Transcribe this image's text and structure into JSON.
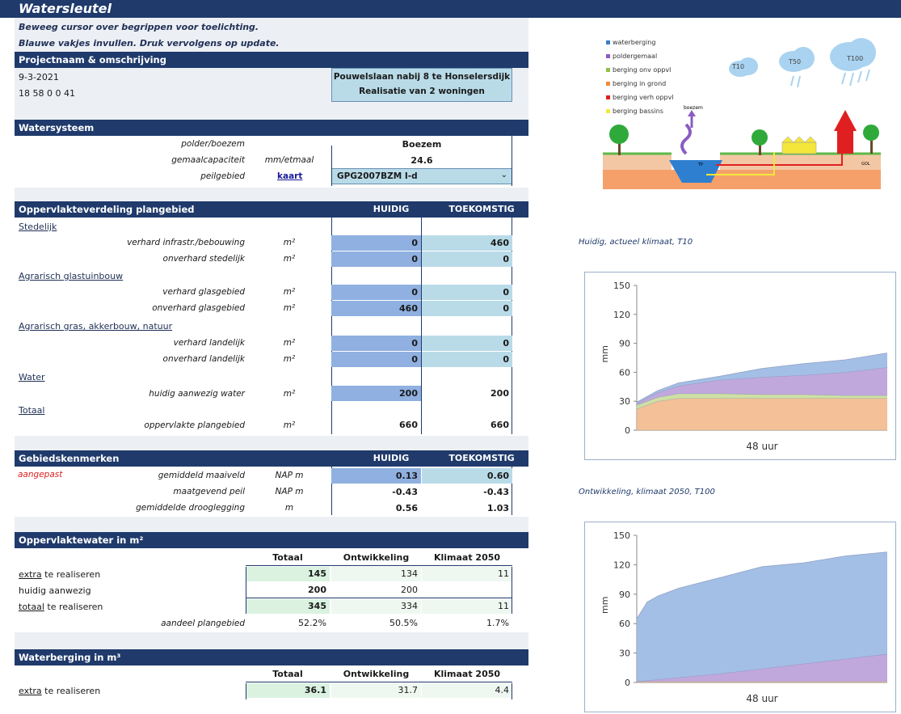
{
  "app": {
    "title": "Watersleutel",
    "instructions": [
      "Beweeg cursor over begrippen voor toelichting.",
      "Blauwe vakjes invullen. Druk vervolgens op update."
    ]
  },
  "project": {
    "header": "Projectnaam & omschrijving",
    "date": "9-3-2021",
    "code": "18 58 0 0 41",
    "name": "Pouwelslaan nabij 8 te Honselersdijk",
    "description": "Realisatie van 2 woningen"
  },
  "watersysteem": {
    "header": "Watersysteem",
    "rows": [
      {
        "label": "polder/boezem",
        "unit": "",
        "value": "Boezem"
      },
      {
        "label": "gemaalcapaciteit",
        "unit": "mm/etmaal",
        "value": "24.6"
      },
      {
        "label": "peilgebied",
        "unit": "kaart",
        "value": "GPG2007BZM I-d"
      }
    ]
  },
  "opp": {
    "header": "Oppervlakteverdeling plangebied",
    "col1": "HUIDIG",
    "col2": "TOEKOMSTIG",
    "sections": [
      "Stedelijk",
      "Agrarisch glastuinbouw",
      "Agrarisch gras, akkerbouw, natuur",
      "Water",
      "Totaal"
    ],
    "rows": [
      {
        "label": "verhard infrastr./bebouwing",
        "unit": "m²",
        "h": "0",
        "t": "460"
      },
      {
        "label": "onverhard stedelijk",
        "unit": "m²",
        "h": "0",
        "t": "0"
      },
      {
        "label": "verhard glasgebied",
        "unit": "m²",
        "h": "0",
        "t": "0"
      },
      {
        "label": "onverhard glasgebied",
        "unit": "m²",
        "h": "460",
        "t": "0"
      },
      {
        "label": "verhard landelijk",
        "unit": "m²",
        "h": "0",
        "t": "0"
      },
      {
        "label": "onverhard landelijk",
        "unit": "m²",
        "h": "0",
        "t": "0"
      },
      {
        "label": "huidig aanwezig water",
        "unit": "m²",
        "h": "200",
        "t": "200"
      },
      {
        "label": "oppervlakte plangebied",
        "unit": "m²",
        "h": "660",
        "t": "660"
      }
    ]
  },
  "gebied": {
    "header": "Gebiedskenmerken",
    "col1": "HUIDIG",
    "col2": "TOEKOMSTIG",
    "flag": "aangepast",
    "rows": [
      {
        "label": "gemiddeld maaiveld",
        "unit": "NAP m",
        "h": "0.13",
        "t": "0.60"
      },
      {
        "label": "maatgevend peil",
        "unit": "NAP m",
        "h": "-0.43",
        "t": "-0.43"
      },
      {
        "label": "gemiddelde drooglegging",
        "unit": "m",
        "h": "0.56",
        "t": "1.03"
      }
    ]
  },
  "opwater": {
    "header": "Oppervlaktewater in m²",
    "cols": [
      "Totaal",
      "Ontwikkeling",
      "Klimaat 2050"
    ],
    "rows": [
      {
        "a": "extra",
        "b": " te realiseren",
        "v": [
          "145",
          "134",
          "11"
        ]
      },
      {
        "a": "",
        "b": "huidig aanwezig",
        "v": [
          "200",
          "200",
          ""
        ]
      },
      {
        "a": "totaal",
        "b": " te realiseren",
        "v": [
          "345",
          "334",
          "11"
        ]
      }
    ],
    "share_label": "aandeel plangebied",
    "share": [
      "52.2%",
      "50.5%",
      "1.7%"
    ]
  },
  "waterberging": {
    "header": "Waterberging in m³",
    "cols": [
      "Totaal",
      "Ontwikkeling",
      "Klimaat 2050"
    ],
    "row": {
      "a": "extra",
      "b": " te realiseren",
      "v": [
        "36.1",
        "31.7",
        "4.4"
      ]
    }
  },
  "diagram": {
    "legend": [
      {
        "label": "waterberging",
        "color": "#3d7cc9"
      },
      {
        "label": "poldergemaal",
        "color": "#8a5cc2"
      },
      {
        "label": "berging onv oppvl",
        "color": "#8fc04a"
      },
      {
        "label": "berging in grond",
        "color": "#f08a3c"
      },
      {
        "label": "berging verh oppvl",
        "color": "#e02020"
      },
      {
        "label": "berging bassins",
        "color": "#f2e83a"
      }
    ],
    "clouds": [
      "T10",
      "T50",
      "T100"
    ],
    "labels": {
      "boezem": "boezem",
      "tp": "TP",
      "gol": "GOL"
    }
  },
  "chart_data": [
    {
      "type": "area",
      "title": "Huidig, actueel klimaat, T10",
      "xlabel": "48 uur",
      "ylabel": "mm",
      "ylim": [
        0,
        150
      ],
      "yticks": [
        "150",
        "120",
        "90",
        "60",
        "30",
        "0"
      ],
      "x": [
        0,
        4,
        8,
        16,
        24,
        32,
        40,
        48
      ],
      "series": [
        {
          "name": "berging in grond",
          "color": "#f2b98c",
          "values": [
            22,
            30,
            33,
            33,
            33,
            33,
            33,
            33
          ]
        },
        {
          "name": "berging onv oppvl",
          "color": "#c9dd9a",
          "values": [
            4,
            4,
            5,
            5,
            4,
            4,
            3,
            3
          ]
        },
        {
          "name": "poldergemaal",
          "color": "#b99fd8",
          "values": [
            2,
            5,
            8,
            14,
            18,
            20,
            24,
            29
          ]
        },
        {
          "name": "waterberging",
          "color": "#9ab8e2",
          "values": [
            1,
            2,
            3,
            4,
            9,
            12,
            13,
            15
          ]
        }
      ]
    },
    {
      "type": "area",
      "title": "Ontwikkeling, klimaat 2050, T100",
      "xlabel": "48 uur",
      "ylabel": "mm",
      "ylim": [
        0,
        150
      ],
      "yticks": [
        "150",
        "120",
        "90",
        "60",
        "30",
        "0"
      ],
      "x": [
        0,
        2,
        4,
        8,
        16,
        24,
        32,
        40,
        48
      ],
      "series": [
        {
          "name": "berging in grond",
          "color": "#f2b98c",
          "values": [
            1,
            1,
            1,
            1,
            1,
            1,
            1,
            1,
            1
          ]
        },
        {
          "name": "poldergemaal",
          "color": "#b99fd8",
          "values": [
            0,
            1,
            2,
            4,
            8,
            13,
            18,
            23,
            28
          ]
        },
        {
          "name": "waterberging",
          "color": "#9ab8e2",
          "values": [
            64,
            80,
            85,
            91,
            98,
            104,
            103,
            105,
            104
          ]
        }
      ]
    }
  ]
}
